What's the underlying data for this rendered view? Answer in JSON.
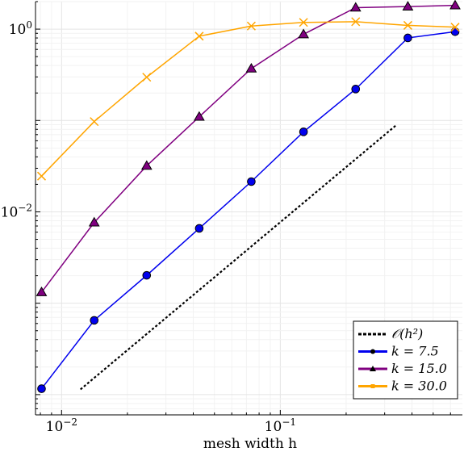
{
  "chart_data": {
    "type": "line",
    "xlabel": "mesh width h",
    "ylabel": "",
    "x_scale": "log",
    "y_scale": "log",
    "xlim": [
      0.0076,
      0.68
    ],
    "ylim": [
      6e-05,
      2.0
    ],
    "x_ticks": [
      {
        "value": 0.01,
        "base": "10",
        "exp": "−2"
      },
      {
        "value": 0.1,
        "base": "10",
        "exp": "−1"
      }
    ],
    "y_ticks": [
      {
        "value": 0.01,
        "base": "10",
        "exp": "−2"
      },
      {
        "value": 1.0,
        "base": "10",
        "exp": "0"
      }
    ],
    "grid": true,
    "legend_position": "bottom-right",
    "reference_line": {
      "name": "𝒪(h²)",
      "x": [
        0.0122,
        0.34
      ],
      "y": [
        0.000114,
        0.0895
      ],
      "color": "#000000",
      "style": "dotted"
    },
    "series": [
      {
        "name": "k = 7.5",
        "color": "#0000ee",
        "marker": "circle",
        "x": [
          0.0081,
          0.0141,
          0.0245,
          0.0426,
          0.0737,
          0.1277,
          0.2211,
          0.383,
          0.63
        ],
        "y": [
          0.000116,
          0.00065,
          0.00202,
          0.00659,
          0.02143,
          0.0751,
          0.2207,
          0.801,
          0.937
        ]
      },
      {
        "name": "k = 15.0",
        "color": "#800080",
        "marker": "triangle",
        "x": [
          0.0081,
          0.0141,
          0.0245,
          0.0426,
          0.0737,
          0.1277,
          0.2211,
          0.383,
          0.63
        ],
        "y": [
          0.00132,
          0.00765,
          0.0319,
          0.1098,
          0.37,
          0.8776,
          1.719,
          1.764,
          1.819
        ]
      },
      {
        "name": "k = 30.0",
        "color": "#ffa500",
        "marker": "cross",
        "x": [
          0.0081,
          0.0141,
          0.0245,
          0.0426,
          0.0737,
          0.1277,
          0.2211,
          0.383,
          0.63
        ],
        "y": [
          0.02462,
          0.09735,
          0.2978,
          0.8373,
          1.081,
          1.184,
          1.206,
          1.099,
          1.05
        ]
      }
    ]
  }
}
